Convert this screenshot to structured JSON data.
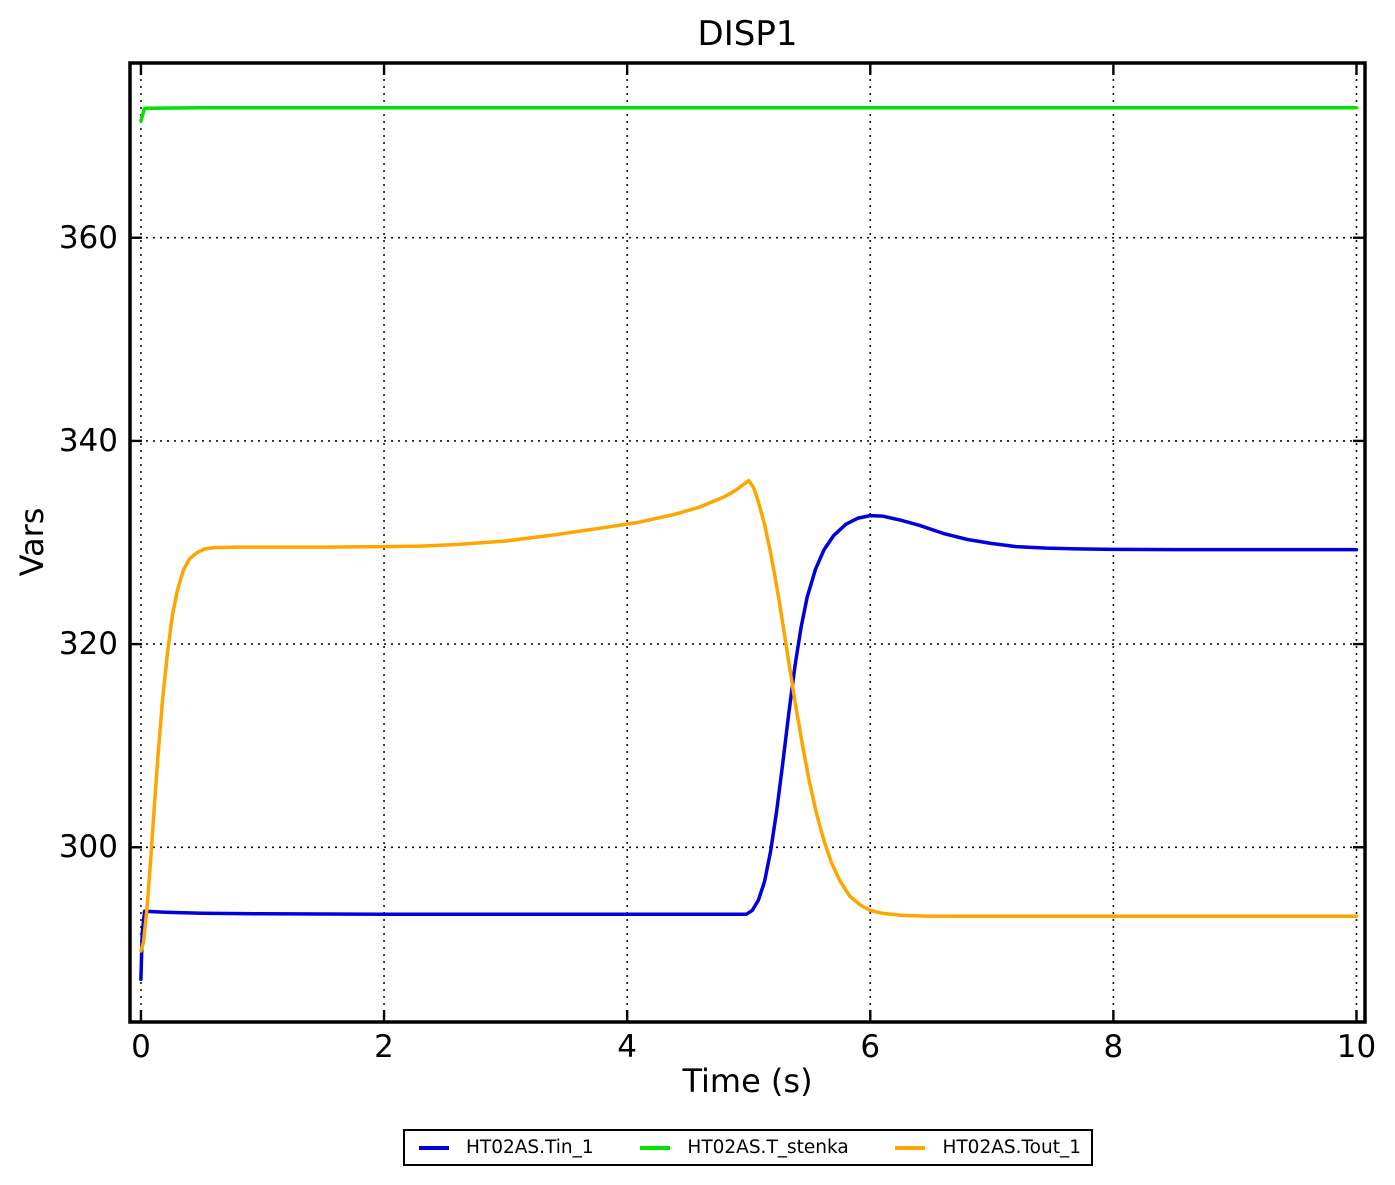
{
  "chart_data": {
    "type": "line",
    "title": "DISP1",
    "xlabel": "Time (s)",
    "ylabel": "Vars",
    "xlim": [
      -0.09,
      10.07
    ],
    "ylim": [
      282.8,
      377.2
    ],
    "xticks": [
      0,
      2,
      4,
      6,
      8,
      10
    ],
    "yticks": [
      300,
      320,
      340,
      360
    ],
    "grid": true,
    "grid_style": "dotted",
    "legend_position": "bottom-outside",
    "axis_color": "#000000",
    "series": [
      {
        "name": "HT02AS.Tin_1",
        "color": "#0000dd",
        "points": [
          [
            0.0,
            287.0
          ],
          [
            0.01,
            291.5
          ],
          [
            0.03,
            293.7
          ],
          [
            0.2,
            293.6
          ],
          [
            0.5,
            293.5
          ],
          [
            1.0,
            293.45
          ],
          [
            2.0,
            293.4
          ],
          [
            3.0,
            293.4
          ],
          [
            4.0,
            293.4
          ],
          [
            4.5,
            293.4
          ],
          [
            4.98,
            293.4
          ],
          [
            5.03,
            293.8
          ],
          [
            5.08,
            294.8
          ],
          [
            5.13,
            296.6
          ],
          [
            5.18,
            299.6
          ],
          [
            5.23,
            303.6
          ],
          [
            5.28,
            308.3
          ],
          [
            5.33,
            313.2
          ],
          [
            5.38,
            317.8
          ],
          [
            5.43,
            321.6
          ],
          [
            5.48,
            324.6
          ],
          [
            5.55,
            327.4
          ],
          [
            5.62,
            329.3
          ],
          [
            5.7,
            330.7
          ],
          [
            5.8,
            331.8
          ],
          [
            5.9,
            332.4
          ],
          [
            6.0,
            332.65
          ],
          [
            6.1,
            332.6
          ],
          [
            6.25,
            332.2
          ],
          [
            6.4,
            331.7
          ],
          [
            6.6,
            330.9
          ],
          [
            6.8,
            330.3
          ],
          [
            7.0,
            329.9
          ],
          [
            7.2,
            329.6
          ],
          [
            7.45,
            329.45
          ],
          [
            7.7,
            329.37
          ],
          [
            8.0,
            329.32
          ],
          [
            8.5,
            329.3
          ],
          [
            9.0,
            329.3
          ],
          [
            10.0,
            329.3
          ]
        ]
      },
      {
        "name": "HT02AS.T_stenka",
        "color": "#00e400",
        "points": [
          [
            0.0,
            371.5
          ],
          [
            0.03,
            372.75
          ],
          [
            0.5,
            372.8
          ],
          [
            5.0,
            372.8
          ],
          [
            10.0,
            372.8
          ]
        ]
      },
      {
        "name": "HT02AS.Tout_1",
        "color": "#ffa500",
        "points": [
          [
            0.0,
            289.8
          ],
          [
            0.02,
            290.6
          ],
          [
            0.05,
            294.0
          ],
          [
            0.08,
            298.8
          ],
          [
            0.11,
            304.0
          ],
          [
            0.14,
            309.0
          ],
          [
            0.18,
            314.8
          ],
          [
            0.22,
            319.3
          ],
          [
            0.26,
            322.9
          ],
          [
            0.3,
            325.3
          ],
          [
            0.35,
            327.3
          ],
          [
            0.4,
            328.4
          ],
          [
            0.46,
            329.0
          ],
          [
            0.52,
            329.35
          ],
          [
            0.6,
            329.5
          ],
          [
            0.8,
            329.55
          ],
          [
            1.0,
            329.55
          ],
          [
            1.5,
            329.55
          ],
          [
            2.0,
            329.6
          ],
          [
            2.3,
            329.65
          ],
          [
            2.6,
            329.8
          ],
          [
            3.0,
            330.15
          ],
          [
            3.4,
            330.75
          ],
          [
            3.8,
            331.45
          ],
          [
            4.1,
            332.0
          ],
          [
            4.4,
            332.8
          ],
          [
            4.6,
            333.5
          ],
          [
            4.8,
            334.5
          ],
          [
            4.9,
            335.2
          ],
          [
            5.0,
            336.1
          ],
          [
            5.04,
            335.4
          ],
          [
            5.08,
            334.0
          ],
          [
            5.13,
            331.8
          ],
          [
            5.18,
            329.0
          ],
          [
            5.23,
            325.7
          ],
          [
            5.28,
            322.0
          ],
          [
            5.33,
            318.2
          ],
          [
            5.38,
            314.4
          ],
          [
            5.44,
            310.2
          ],
          [
            5.5,
            306.4
          ],
          [
            5.56,
            303.2
          ],
          [
            5.62,
            300.6
          ],
          [
            5.68,
            298.5
          ],
          [
            5.75,
            296.7
          ],
          [
            5.83,
            295.2
          ],
          [
            5.92,
            294.3
          ],
          [
            6.0,
            293.8
          ],
          [
            6.1,
            293.5
          ],
          [
            6.25,
            293.3
          ],
          [
            6.45,
            293.22
          ],
          [
            6.7,
            293.2
          ],
          [
            7.0,
            293.2
          ],
          [
            7.5,
            293.2
          ],
          [
            8.0,
            293.2
          ],
          [
            9.0,
            293.2
          ],
          [
            10.0,
            293.2
          ]
        ]
      }
    ]
  }
}
